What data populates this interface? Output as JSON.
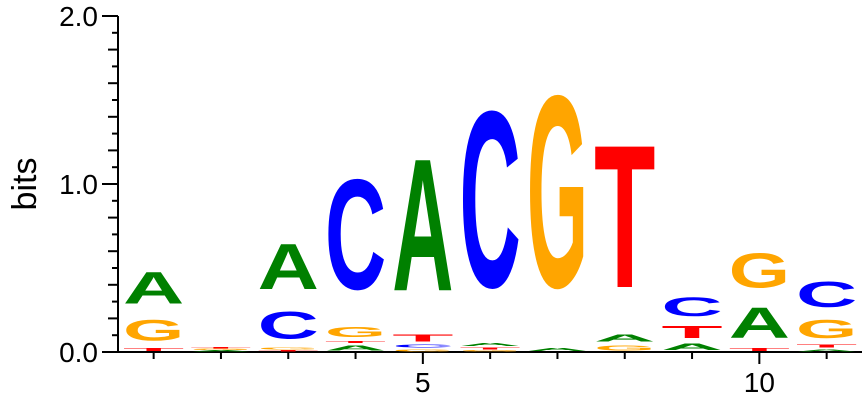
{
  "chart_data": {
    "type": "sequence-logo",
    "ylabel": "bits",
    "ylim": [
      0,
      2
    ],
    "y_ticks": [
      {
        "value": 0,
        "label": "0.0"
      },
      {
        "value": 1,
        "label": "1.0"
      },
      {
        "value": 2,
        "label": "2.0"
      }
    ],
    "x_ticks": [
      {
        "value": 5,
        "label": "5"
      },
      {
        "value": 10,
        "label": "10"
      }
    ],
    "colors": {
      "A": "#008000",
      "C": "#0000ff",
      "G": "#ffa500",
      "T": "#ff0000"
    },
    "positions": [
      {
        "pos": 1,
        "letters": [
          {
            "l": "T",
            "h": 0.03
          },
          {
            "l": "G",
            "h": 0.2
          },
          {
            "l": "A",
            "h": 0.3
          }
        ]
      },
      {
        "pos": 2,
        "letters": [
          {
            "l": "A",
            "h": 0.01
          },
          {
            "l": "G",
            "h": 0.01
          },
          {
            "l": "T",
            "h": 0.01
          }
        ]
      },
      {
        "pos": 3,
        "letters": [
          {
            "l": "T",
            "h": 0.01
          },
          {
            "l": "G",
            "h": 0.02
          },
          {
            "l": "C",
            "h": 0.26
          },
          {
            "l": "A",
            "h": 0.43
          }
        ]
      },
      {
        "pos": 4,
        "letters": [
          {
            "l": "A",
            "h": 0.05
          },
          {
            "l": "T",
            "h": 0.02
          },
          {
            "l": "G",
            "h": 0.1
          },
          {
            "l": "C",
            "h": 1.05
          }
        ]
      },
      {
        "pos": 5,
        "letters": [
          {
            "l": "G",
            "h": 0.02
          },
          {
            "l": "C",
            "h": 0.03
          },
          {
            "l": "T",
            "h": 0.07
          },
          {
            "l": "A",
            "h": 1.26
          }
        ]
      },
      {
        "pos": 6,
        "letters": [
          {
            "l": "G",
            "h": 0.01
          },
          {
            "l": "T",
            "h": 0.02
          },
          {
            "l": "A",
            "h": 0.03
          },
          {
            "l": "C",
            "h": 1.68
          }
        ]
      },
      {
        "pos": 7,
        "letters": [
          {
            "l": "A",
            "h": 0.03
          },
          {
            "l": "G",
            "h": 1.83
          }
        ]
      },
      {
        "pos": 8,
        "letters": [
          {
            "l": "G",
            "h": 0.05
          },
          {
            "l": "A",
            "h": 0.07
          },
          {
            "l": "T",
            "h": 1.36
          }
        ]
      },
      {
        "pos": 9,
        "letters": [
          {
            "l": "A",
            "h": 0.06
          },
          {
            "l": "T",
            "h": 0.12
          },
          {
            "l": "C",
            "h": 0.18
          }
        ]
      },
      {
        "pos": 10,
        "letters": [
          {
            "l": "T",
            "h": 0.03
          },
          {
            "l": "A",
            "h": 0.29
          },
          {
            "l": "G",
            "h": 0.33
          }
        ]
      },
      {
        "pos": 11,
        "letters": [
          {
            "l": "A",
            "h": 0.02
          },
          {
            "l": "T",
            "h": 0.03
          },
          {
            "l": "G",
            "h": 0.17
          },
          {
            "l": "C",
            "h": 0.24
          }
        ]
      }
    ]
  }
}
